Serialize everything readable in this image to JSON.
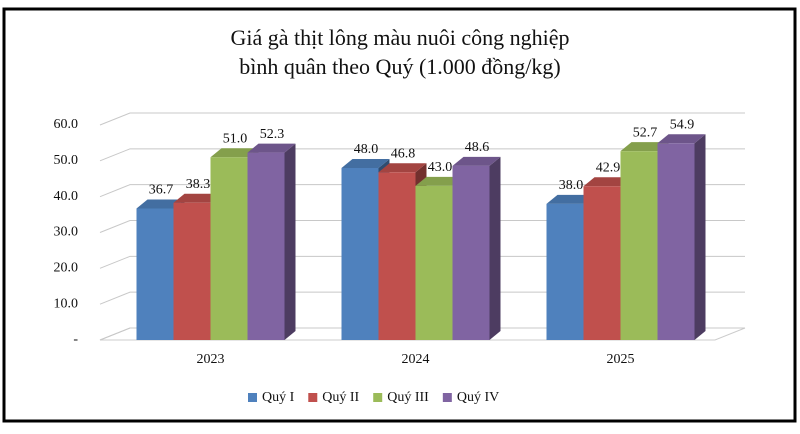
{
  "chart_data": {
    "type": "bar3d",
    "title": "Giá gà thịt lông màu nuôi công nghiệp",
    "subtitle": "bình quân theo Quý (1.000 đồng/kg)",
    "categories": [
      "2023",
      "2024",
      "2025"
    ],
    "series": [
      {
        "name": "Quý I",
        "color": "#4f81bd",
        "values": [
          36.7,
          48.0,
          38.0
        ],
        "value_labels": [
          "36.7",
          "48.0",
          "38.0"
        ]
      },
      {
        "name": "Quý II",
        "color": "#c0504d",
        "values": [
          38.3,
          46.8,
          42.9
        ],
        "value_labels": [
          "38.3",
          "46.8",
          "42.9"
        ]
      },
      {
        "name": "Quý III",
        "color": "#9bbb59",
        "values": [
          51.0,
          43.0,
          52.7
        ],
        "value_labels": [
          "51.0",
          "43.0",
          "52.7"
        ]
      },
      {
        "name": "Quý IV",
        "color": "#8064a2",
        "values": [
          52.3,
          48.6,
          54.9
        ],
        "value_labels": [
          "52.3",
          "48.6",
          "54.9"
        ]
      }
    ],
    "ylim": [
      0,
      60
    ],
    "yticks": [
      {
        "value": 0,
        "label": "-"
      },
      {
        "value": 10,
        "label": "10.0"
      },
      {
        "value": 20,
        "label": "20.0"
      },
      {
        "value": 30,
        "label": "30.0"
      },
      {
        "value": 40,
        "label": "40.0"
      },
      {
        "value": 50,
        "label": "50.0"
      },
      {
        "value": 60,
        "label": "60.0"
      }
    ],
    "grid": true,
    "legend": "bottom"
  }
}
